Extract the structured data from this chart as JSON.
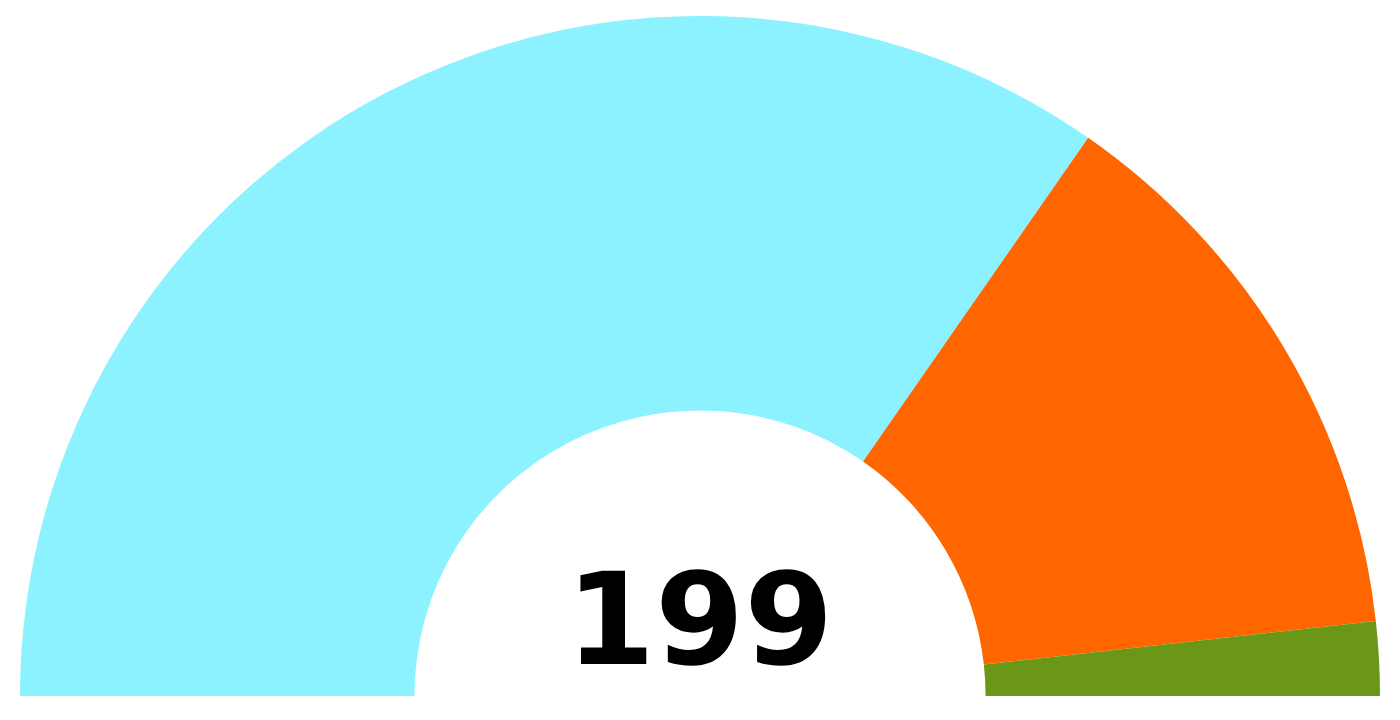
{
  "chart_data": {
    "type": "donut",
    "categories": [
      null,
      null,
      null
    ],
    "values": [
      69.34,
      27.14,
      3.52
    ],
    "colors": [
      "#8cf2ff",
      "#ff6600",
      "#6b9718"
    ],
    "annotations": [
      "199"
    ]
  }
}
